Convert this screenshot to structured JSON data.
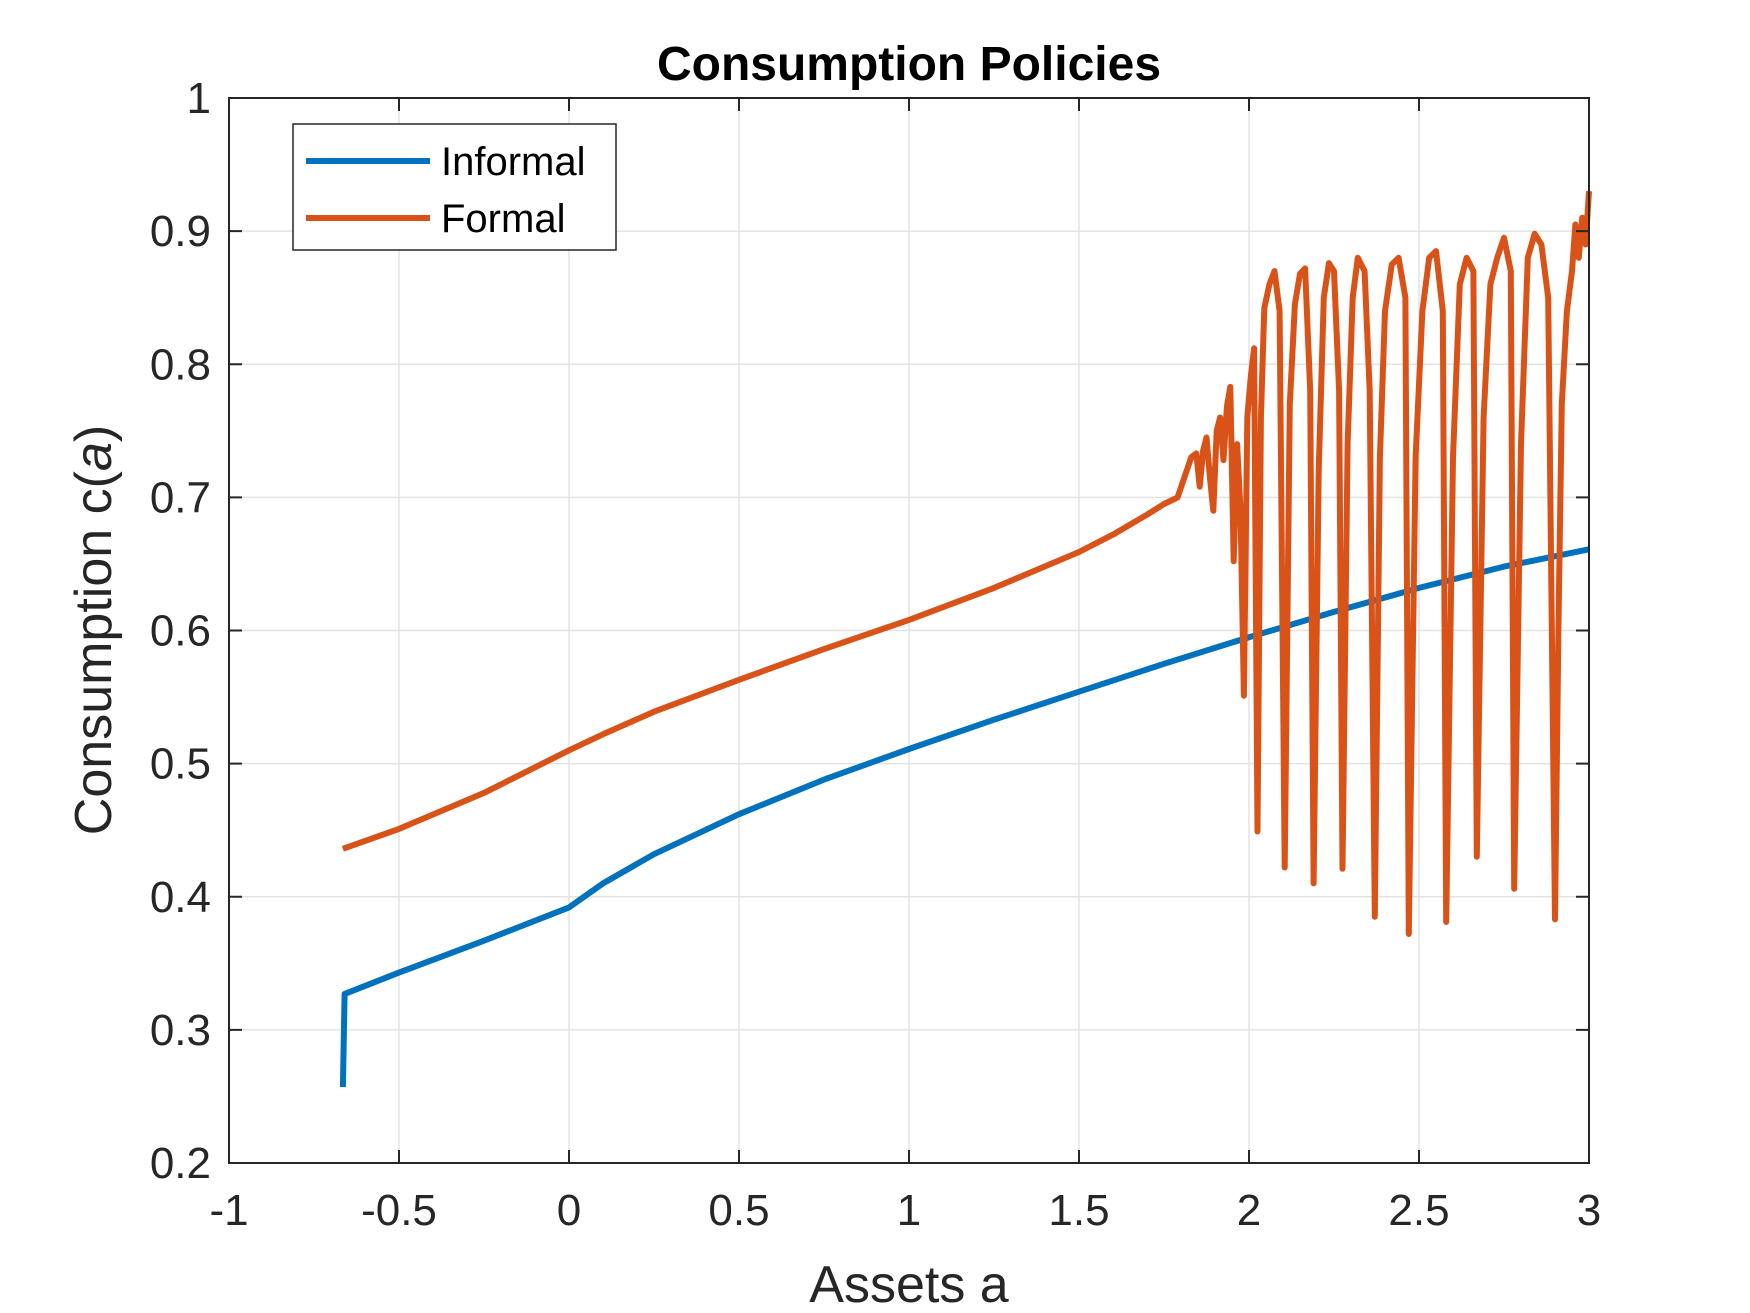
{
  "chart_data": {
    "type": "line",
    "title": "Consumption Policies",
    "xlabel": "Assets a",
    "ylabel_prefix": "Consumption c(",
    "ylabel_var": "a",
    "ylabel_suffix": ")",
    "xlim": [
      -1,
      3
    ],
    "ylim": [
      0.2,
      1
    ],
    "xticks": [
      -1,
      -0.5,
      0,
      0.5,
      1,
      1.5,
      2,
      2.5,
      3
    ],
    "xtick_labels": [
      "-1",
      "-0.5",
      "0",
      "0.5",
      "1",
      "1.5",
      "2",
      "2.5",
      "3"
    ],
    "yticks": [
      0.2,
      0.3,
      0.4,
      0.5,
      0.6,
      0.7,
      0.8,
      0.9,
      1
    ],
    "ytick_labels": [
      "0.2",
      "0.3",
      "0.4",
      "0.5",
      "0.6",
      "0.7",
      "0.8",
      "0.9",
      "1"
    ],
    "grid": true,
    "legend_position": "top-left",
    "series": [
      {
        "name": "Informal",
        "color": "#0072BD",
        "points": [
          [
            -0.665,
            0.257
          ],
          [
            -0.66,
            0.327
          ],
          [
            -0.5,
            0.343
          ],
          [
            -0.25,
            0.367
          ],
          [
            0,
            0.392
          ],
          [
            0.1,
            0.41
          ],
          [
            0.25,
            0.432
          ],
          [
            0.5,
            0.462
          ],
          [
            0.75,
            0.488
          ],
          [
            1,
            0.511
          ],
          [
            1.25,
            0.533
          ],
          [
            1.5,
            0.554
          ],
          [
            1.75,
            0.575
          ],
          [
            2,
            0.595
          ],
          [
            2.25,
            0.614
          ],
          [
            2.5,
            0.632
          ],
          [
            2.75,
            0.648
          ],
          [
            3,
            0.661
          ]
        ]
      },
      {
        "name": "Formal",
        "color": "#D95319",
        "points": [
          [
            -0.665,
            0.436
          ],
          [
            -0.5,
            0.451
          ],
          [
            -0.25,
            0.478
          ],
          [
            0,
            0.51
          ],
          [
            0.1,
            0.522
          ],
          [
            0.25,
            0.539
          ],
          [
            0.5,
            0.563
          ],
          [
            0.75,
            0.586
          ],
          [
            1,
            0.608
          ],
          [
            1.25,
            0.632
          ],
          [
            1.5,
            0.659
          ],
          [
            1.6,
            0.672
          ],
          [
            1.7,
            0.687
          ],
          [
            1.75,
            0.695
          ],
          [
            1.79,
            0.7
          ],
          [
            1.81,
            0.715
          ],
          [
            1.83,
            0.73
          ],
          [
            1.845,
            0.733
          ],
          [
            1.855,
            0.708
          ],
          [
            1.865,
            0.735
          ],
          [
            1.875,
            0.745
          ],
          [
            1.885,
            0.715
          ],
          [
            1.895,
            0.69
          ],
          [
            1.905,
            0.75
          ],
          [
            1.915,
            0.76
          ],
          [
            1.925,
            0.728
          ],
          [
            1.935,
            0.768
          ],
          [
            1.945,
            0.783
          ],
          [
            1.955,
            0.652
          ],
          [
            1.965,
            0.74
          ],
          [
            1.975,
            0.69
          ],
          [
            1.985,
            0.551
          ],
          [
            1.995,
            0.76
          ],
          [
            2.005,
            0.79
          ],
          [
            2.015,
            0.812
          ],
          [
            2.025,
            0.449
          ],
          [
            2.035,
            0.76
          ],
          [
            2.045,
            0.842
          ],
          [
            2.06,
            0.86
          ],
          [
            2.075,
            0.87
          ],
          [
            2.09,
            0.84
          ],
          [
            2.105,
            0.422
          ],
          [
            2.12,
            0.77
          ],
          [
            2.135,
            0.845
          ],
          [
            2.15,
            0.868
          ],
          [
            2.165,
            0.872
          ],
          [
            2.18,
            0.78
          ],
          [
            2.19,
            0.41
          ],
          [
            2.205,
            0.72
          ],
          [
            2.22,
            0.85
          ],
          [
            2.235,
            0.876
          ],
          [
            2.25,
            0.87
          ],
          [
            2.265,
            0.78
          ],
          [
            2.275,
            0.421
          ],
          [
            2.29,
            0.74
          ],
          [
            2.305,
            0.85
          ],
          [
            2.32,
            0.88
          ],
          [
            2.34,
            0.87
          ],
          [
            2.355,
            0.78
          ],
          [
            2.37,
            0.385
          ],
          [
            2.385,
            0.73
          ],
          [
            2.4,
            0.84
          ],
          [
            2.42,
            0.875
          ],
          [
            2.44,
            0.88
          ],
          [
            2.46,
            0.85
          ],
          [
            2.47,
            0.372
          ],
          [
            2.49,
            0.73
          ],
          [
            2.51,
            0.84
          ],
          [
            2.53,
            0.88
          ],
          [
            2.55,
            0.885
          ],
          [
            2.57,
            0.84
          ],
          [
            2.58,
            0.381
          ],
          [
            2.6,
            0.73
          ],
          [
            2.62,
            0.86
          ],
          [
            2.64,
            0.88
          ],
          [
            2.66,
            0.87
          ],
          [
            2.67,
            0.43
          ],
          [
            2.69,
            0.76
          ],
          [
            2.71,
            0.86
          ],
          [
            2.73,
            0.88
          ],
          [
            2.75,
            0.895
          ],
          [
            2.77,
            0.87
          ],
          [
            2.78,
            0.406
          ],
          [
            2.8,
            0.74
          ],
          [
            2.82,
            0.88
          ],
          [
            2.84,
            0.898
          ],
          [
            2.86,
            0.89
          ],
          [
            2.88,
            0.85
          ],
          [
            2.9,
            0.383
          ],
          [
            2.91,
            0.6
          ],
          [
            2.92,
            0.77
          ],
          [
            2.935,
            0.84
          ],
          [
            2.95,
            0.87
          ],
          [
            2.96,
            0.905
          ],
          [
            2.97,
            0.88
          ],
          [
            2.98,
            0.91
          ],
          [
            2.99,
            0.89
          ],
          [
            3.0,
            0.93
          ]
        ]
      }
    ]
  }
}
